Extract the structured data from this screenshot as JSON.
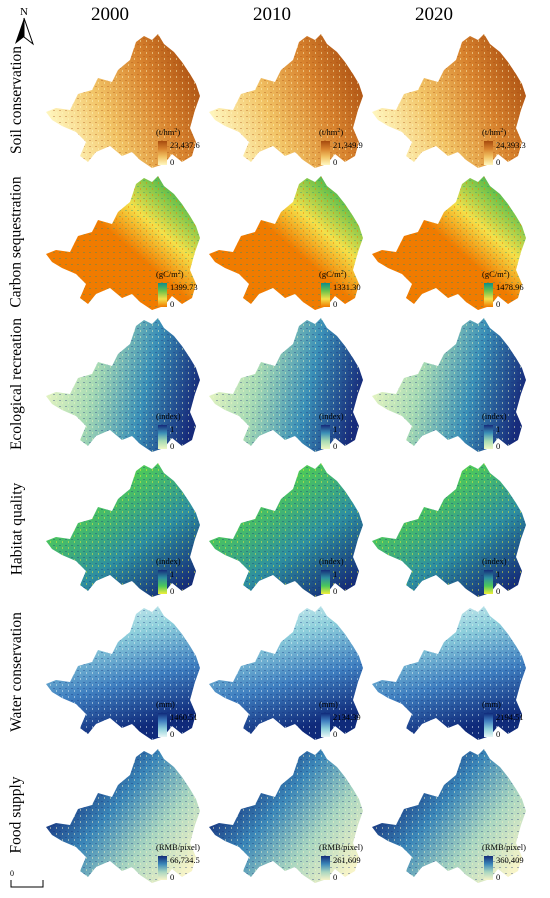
{
  "north": {
    "letter": "N"
  },
  "scale": {
    "zero_label": "0"
  },
  "years": [
    "2000",
    "2010",
    "2020"
  ],
  "rows": [
    {
      "label": "Soil conservation",
      "unit_main": "(t/hm",
      "unit_sup": "2",
      "unit_tail": ")",
      "ramp": [
        "#fff7c0",
        "#f2c466",
        "#d8832e",
        "#a64a0e"
      ],
      "legend_max": [
        "23,437.6",
        "21,349.9",
        "24,393.3"
      ],
      "legend_min": "0"
    },
    {
      "label": "Carbon sequestration",
      "unit_main": "(gC/m",
      "unit_sup": "2",
      "unit_tail": ")",
      "ramp": [
        "#f07b00",
        "#f4e04a",
        "#6cc24a",
        "#0d8f8a"
      ],
      "legend_max": [
        "1399.73",
        "1331.30",
        "1478.96"
      ],
      "legend_min": "0"
    },
    {
      "label": "Ecological recreation",
      "unit_main": "(index)",
      "unit_sup": "",
      "unit_tail": "",
      "ramp": [
        "#eef8c4",
        "#a6dab4",
        "#3a8fb7",
        "#162a7a"
      ],
      "legend_max": [
        "1",
        "1",
        "1"
      ],
      "legend_min": "0"
    },
    {
      "label": "Habitat quality",
      "unit_main": "(index)",
      "unit_sup": "",
      "unit_tail": "",
      "ramp": [
        "#f0ef3a",
        "#4cc85a",
        "#2e8fa0",
        "#152d78"
      ],
      "legend_max": [
        "1",
        "1",
        "1"
      ],
      "legend_min": "0"
    },
    {
      "label": "Water conservation",
      "unit_main": "(mm)",
      "unit_sup": "",
      "unit_tail": "",
      "ramp": [
        "#e8f6f6",
        "#8fd0dc",
        "#3f7fc0",
        "#0f2a7a"
      ],
      "legend_max": [
        "1460.51",
        "2134.39",
        "2194.51"
      ],
      "legend_min": "0"
    },
    {
      "label": "Food supply",
      "unit_main": "(RMB/pixel)",
      "unit_sup": "",
      "unit_tail": "",
      "ramp": [
        "#f7f4c8",
        "#a9d6c0",
        "#3a86b8",
        "#142c78"
      ],
      "legend_max": [
        "66,734.5",
        "261,609",
        "360,409"
      ],
      "legend_min": "0"
    }
  ]
}
